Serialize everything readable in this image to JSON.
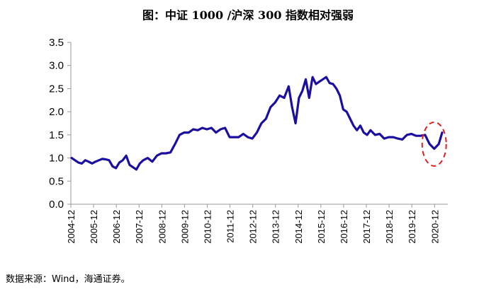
{
  "title": "图：中证 1000 /沪深 300 指数相对强弱",
  "source": "数据来源：Wind，海通证券。",
  "chart_data": {
    "type": "line",
    "title": "图：中证 1000 /沪深 300 指数相对强弱",
    "xlabel": "",
    "ylabel": "",
    "ylim": [
      0,
      3.5
    ],
    "y_ticks": [
      "0.0",
      "0.5",
      "1.0",
      "1.5",
      "2.0",
      "2.5",
      "3.0",
      "3.5"
    ],
    "x_ticks": [
      "2004-12",
      "2005-12",
      "2006-12",
      "2007-12",
      "2008-12",
      "2009-12",
      "2010-12",
      "2011-12",
      "2012-12",
      "2013-12",
      "2014-12",
      "2015-12",
      "2016-12",
      "2017-12",
      "2018-12",
      "2019-12",
      "2020-12"
    ],
    "x_range": [
      2004.917,
      2021.5
    ],
    "series": [
      {
        "color": "#1a0fa0",
        "x": [
          2004.95,
          2005.1,
          2005.25,
          2005.4,
          2005.55,
          2005.7,
          2005.85,
          2006.0,
          2006.15,
          2006.3,
          2006.45,
          2006.6,
          2006.75,
          2006.9,
          2007.05,
          2007.2,
          2007.35,
          2007.5,
          2007.65,
          2007.8,
          2007.95,
          2008.1,
          2008.3,
          2008.5,
          2008.7,
          2008.9,
          2009.1,
          2009.3,
          2009.5,
          2009.7,
          2009.9,
          2010.1,
          2010.3,
          2010.5,
          2010.7,
          2010.9,
          2011.1,
          2011.3,
          2011.5,
          2011.7,
          2011.9,
          2012.1,
          2012.3,
          2012.5,
          2012.7,
          2012.9,
          2013.1,
          2013.3,
          2013.5,
          2013.7,
          2013.9,
          2014.1,
          2014.3,
          2014.5,
          2014.65,
          2014.8,
          2014.95,
          2015.1,
          2015.25,
          2015.4,
          2015.55,
          2015.7,
          2015.85,
          2016.0,
          2016.15,
          2016.3,
          2016.45,
          2016.6,
          2016.75,
          2016.9,
          2017.05,
          2017.2,
          2017.35,
          2017.5,
          2017.65,
          2017.8,
          2017.95,
          2018.1,
          2018.3,
          2018.5,
          2018.7,
          2018.9,
          2019.1,
          2019.3,
          2019.5,
          2019.7,
          2019.9,
          2020.1,
          2020.3,
          2020.5,
          2020.7,
          2020.9,
          2021.1,
          2021.25
        ],
        "y": [
          1.0,
          0.95,
          0.9,
          0.88,
          0.95,
          0.92,
          0.88,
          0.92,
          0.95,
          0.98,
          0.97,
          0.95,
          0.82,
          0.78,
          0.9,
          0.95,
          1.05,
          0.85,
          0.8,
          0.75,
          0.88,
          0.95,
          1.0,
          0.92,
          1.05,
          1.1,
          1.1,
          1.12,
          1.3,
          1.5,
          1.55,
          1.55,
          1.62,
          1.6,
          1.65,
          1.62,
          1.65,
          1.55,
          1.62,
          1.65,
          1.45,
          1.45,
          1.45,
          1.52,
          1.45,
          1.42,
          1.55,
          1.75,
          1.85,
          2.1,
          2.2,
          2.35,
          2.3,
          2.55,
          2.1,
          1.75,
          2.3,
          2.45,
          2.7,
          2.3,
          2.75,
          2.6,
          2.65,
          2.7,
          2.75,
          2.62,
          2.6,
          2.5,
          2.35,
          2.05,
          2.0,
          1.85,
          1.7,
          1.6,
          1.7,
          1.55,
          1.5,
          1.6,
          1.5,
          1.52,
          1.42,
          1.45,
          1.45,
          1.42,
          1.4,
          1.5,
          1.52,
          1.48,
          1.48,
          1.5,
          1.3,
          1.2,
          1.3,
          1.55
        ]
      }
    ],
    "annotation": {
      "shape": "dashed-ellipse",
      "color": "#e02020",
      "x_center": 2020.9,
      "y_center": 1.3
    },
    "grid": false
  }
}
